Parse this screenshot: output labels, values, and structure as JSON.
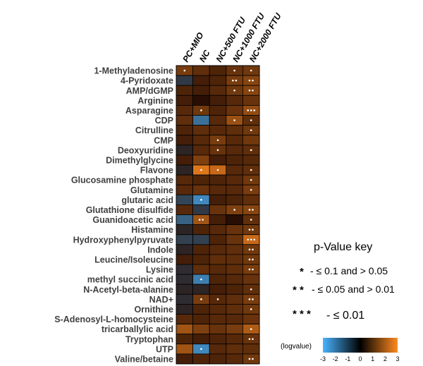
{
  "chart_data": {
    "type": "heatmap",
    "columns": [
      "PC+MIO",
      "NC",
      "NC+500 FTU",
      "NC+1000 FTU",
      "NC+2000 FTU"
    ],
    "rows": [
      "1-Methyladenosine",
      "4-Pyridoxate",
      "AMP/dGMP",
      "Arginine",
      "Asparagine",
      "CDP",
      "Citrulline",
      "CMP",
      "Deoxyuridine",
      "Dimethylglycine",
      "Flavone",
      "Glucosamine phosphate",
      "Glutamine",
      "glutaric acid",
      "Glutathione disulfide",
      "Guanidoacetic acid",
      "Histamine",
      "Hydroxyphenylpyruvate",
      "Indole",
      "Leucine/Isoleucine",
      "Lysine",
      "methyl succinic acid",
      "N-Acetyl-beta-alanine",
      "NAD+",
      "Ornithine",
      "S-Adenosyl-L-homocysteine",
      "tricarballylic acid",
      "Tryptophan",
      "UTP",
      "Valine/betaine"
    ],
    "values": [
      [
        0.8,
        0.5,
        0.3,
        0.6,
        0.7
      ],
      [
        -0.5,
        0.2,
        0.3,
        0.8,
        1.0
      ],
      [
        0.3,
        0.2,
        0.4,
        0.7,
        1.0
      ],
      [
        0.2,
        0.0,
        0.2,
        0.4,
        0.6
      ],
      [
        0.4,
        0.7,
        0.3,
        0.6,
        1.2
      ],
      [
        0.5,
        -1.5,
        0.4,
        1.3,
        0.5
      ],
      [
        0.3,
        0.5,
        0.4,
        0.5,
        0.7
      ],
      [
        0.2,
        0.4,
        0.8,
        0.4,
        0.7
      ],
      [
        -0.2,
        0.4,
        0.6,
        0.4,
        0.5
      ],
      [
        0.2,
        0.9,
        0.2,
        0.3,
        0.4
      ],
      [
        -0.2,
        2.4,
        2.0,
        0.4,
        0.5
      ],
      [
        0.4,
        0.3,
        0.3,
        0.4,
        0.7
      ],
      [
        0.4,
        0.6,
        0.4,
        0.4,
        0.8
      ],
      [
        -0.7,
        -2.0,
        0.2,
        0.3,
        0.5
      ],
      [
        0.4,
        -0.5,
        0.6,
        0.9,
        1.0
      ],
      [
        -1.2,
        1.4,
        0.2,
        0.0,
        0.5
      ],
      [
        -0.2,
        0.3,
        0.4,
        0.6,
        0.7
      ],
      [
        -0.6,
        -0.6,
        0.3,
        0.6,
        2.0
      ],
      [
        -0.2,
        0.3,
        0.4,
        0.5,
        0.7
      ],
      [
        0.2,
        0.3,
        0.5,
        0.5,
        0.7
      ],
      [
        -0.3,
        0.5,
        0.4,
        0.5,
        0.8
      ],
      [
        -0.3,
        -1.8,
        0.3,
        0.4,
        0.6
      ],
      [
        -0.2,
        -0.2,
        0.2,
        0.3,
        0.5
      ],
      [
        -0.3,
        0.8,
        0.4,
        0.5,
        0.8
      ],
      [
        -0.2,
        0.3,
        0.4,
        0.5,
        0.7
      ],
      [
        0.4,
        0.3,
        0.4,
        0.4,
        0.6
      ],
      [
        1.4,
        0.9,
        0.6,
        0.8,
        1.6
      ],
      [
        0.3,
        0.2,
        0.3,
        0.4,
        0.6
      ],
      [
        1.4,
        -2.0,
        0.4,
        0.5,
        0.5
      ],
      [
        0.2,
        0.3,
        0.3,
        0.4,
        0.7
      ]
    ],
    "significance": [
      [
        1,
        0,
        0,
        1,
        1
      ],
      [
        0,
        0,
        0,
        2,
        2
      ],
      [
        0,
        0,
        0,
        1,
        2
      ],
      [
        0,
        0,
        0,
        0,
        0
      ],
      [
        0,
        1,
        0,
        0,
        3
      ],
      [
        0,
        0,
        0,
        1,
        1
      ],
      [
        0,
        0,
        0,
        0,
        1
      ],
      [
        0,
        0,
        1,
        0,
        0
      ],
      [
        0,
        0,
        1,
        0,
        1
      ],
      [
        0,
        0,
        0,
        0,
        0
      ],
      [
        0,
        1,
        1,
        0,
        1
      ],
      [
        0,
        0,
        0,
        0,
        1
      ],
      [
        0,
        0,
        0,
        0,
        1
      ],
      [
        0,
        1,
        0,
        0,
        0
      ],
      [
        0,
        0,
        0,
        1,
        2
      ],
      [
        0,
        2,
        0,
        0,
        1
      ],
      [
        0,
        0,
        0,
        0,
        2
      ],
      [
        0,
        0,
        0,
        0,
        3
      ],
      [
        0,
        0,
        0,
        0,
        2
      ],
      [
        0,
        0,
        0,
        0,
        2
      ],
      [
        0,
        0,
        0,
        0,
        2
      ],
      [
        0,
        1,
        0,
        0,
        0
      ],
      [
        0,
        0,
        0,
        0,
        1
      ],
      [
        0,
        1,
        1,
        0,
        2
      ],
      [
        0,
        0,
        0,
        0,
        1
      ],
      [
        0,
        0,
        0,
        0,
        0
      ],
      [
        0,
        0,
        0,
        0,
        1
      ],
      [
        0,
        0,
        0,
        0,
        2
      ],
      [
        0,
        1,
        0,
        0,
        0
      ],
      [
        0,
        0,
        0,
        0,
        2
      ]
    ],
    "colorbar": {
      "title": "(logvalue)",
      "ticks": [
        "-3",
        "-2",
        "-1",
        "0",
        "1",
        "2",
        "3"
      ],
      "range": [
        -3,
        3
      ],
      "colors": {
        "negative": "#48b4ff",
        "zero": "#000000",
        "positive": "#ff8a20"
      }
    },
    "key": {
      "title": "p-Value key",
      "lines": [
        {
          "stars": "*",
          "text": "- ≤ 0.1 and > 0.05"
        },
        {
          "stars": "* *",
          "text": "- ≤ 0.05 and > 0.01"
        },
        {
          "stars": "* * *",
          "text": "- ≤ 0.01"
        }
      ]
    }
  }
}
